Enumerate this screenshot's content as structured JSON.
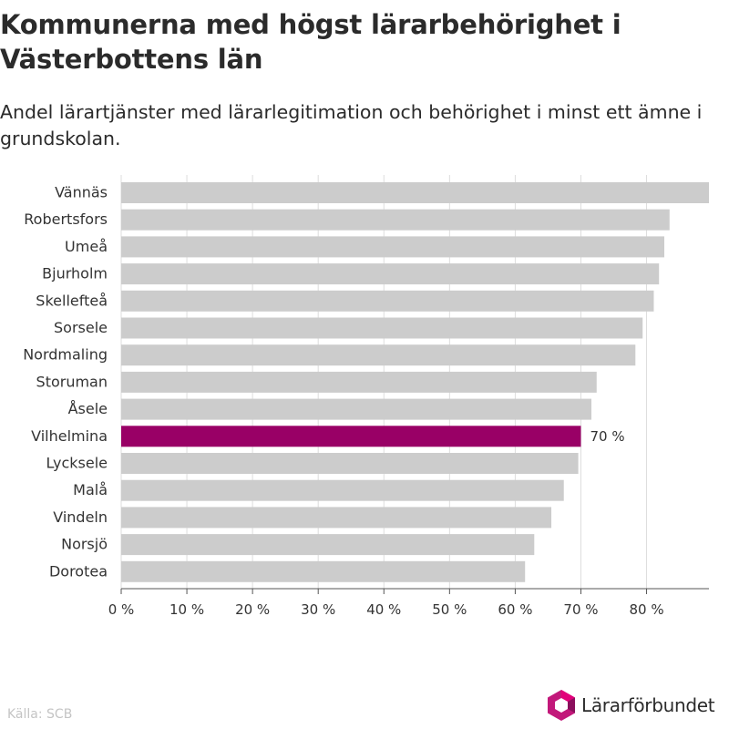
{
  "title": "Kommunerna med högst lärarbehörighet i Västerbottens län",
  "subtitle": "Andel lärartjänster med lärarlegitimation och behörighet i minst ett ämne i grundskolan.",
  "source": "Källa: SCB",
  "brand": "Lärarförbundet",
  "colors": {
    "bar": "#cccccc",
    "highlight": "#990066",
    "grid": "#dddddd"
  },
  "chart_data": {
    "type": "bar",
    "orientation": "horizontal",
    "categories": [
      "Vännäs",
      "Robertsfors",
      "Umeå",
      "Bjurholm",
      "Skellefteå",
      "Sorsele",
      "Nordmaling",
      "Storuman",
      "Åsele",
      "Vilhelmina",
      "Lycksele",
      "Malå",
      "Vindeln",
      "Norsjö",
      "Dorotea"
    ],
    "values": [
      89.5,
      83.5,
      82.7,
      81.9,
      81.1,
      79.4,
      78.3,
      72.4,
      71.6,
      70,
      69.6,
      67.4,
      65.5,
      62.9,
      61.5
    ],
    "highlight": "Vilhelmina",
    "data_labels": {
      "Vilhelmina": "70 %"
    },
    "xticks": [
      "0 %",
      "10 %",
      "20 %",
      "30 %",
      "40 %",
      "50 %",
      "60 %",
      "70 %",
      "80 %"
    ],
    "xlim": [
      0,
      89.5
    ],
    "grid": true
  }
}
